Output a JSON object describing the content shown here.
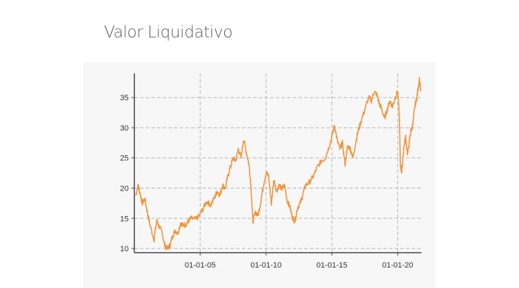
{
  "title": "Valor Liquidativo",
  "colors": {
    "series": "#f0943a",
    "grid": "#b5b5b5",
    "axis": "#444444"
  },
  "chart_data": {
    "type": "line",
    "title": "Valor Liquidativo",
    "xlabel": "",
    "ylabel": "",
    "x_ticks": [
      "01-01-05",
      "01-01-10",
      "01-01-15",
      "01-01-20"
    ],
    "x_tick_years": [
      2005,
      2010,
      2015,
      2020
    ],
    "y_ticks": [
      "10",
      "15",
      "20",
      "25",
      "30",
      "35"
    ],
    "y_tick_values": [
      10,
      15,
      20,
      25,
      30,
      35
    ],
    "xlim": [
      2000.0,
      2021.8
    ],
    "ylim": [
      9.3,
      39.0
    ],
    "grid": true,
    "series": [
      {
        "x": [
          2000.1,
          2000.3,
          2000.45,
          2000.6,
          2000.8,
          2001.0,
          2001.2,
          2001.5,
          2001.7,
          2001.9,
          2002.1,
          2002.3,
          2002.5,
          2002.7,
          2002.9,
          2003.1,
          2003.3,
          2003.5,
          2003.7,
          2003.9,
          2004.1,
          2004.3,
          2004.6,
          2004.9,
          2005.2,
          2005.5,
          2005.8,
          2006.1,
          2006.3,
          2006.5,
          2006.7,
          2006.9,
          2007.1,
          2007.3,
          2007.5,
          2007.7,
          2007.9,
          2008.1,
          2008.3,
          2008.5,
          2008.7,
          2008.85,
          2009.0,
          2009.2,
          2009.4,
          2009.6,
          2009.8,
          2010.0,
          2010.2,
          2010.4,
          2010.6,
          2010.8,
          2011.0,
          2011.2,
          2011.4,
          2011.6,
          2011.8,
          2012.0,
          2012.2,
          2012.4,
          2012.6,
          2012.8,
          2013.0,
          2013.3,
          2013.6,
          2013.9,
          2014.2,
          2014.5,
          2014.8,
          2015.0,
          2015.2,
          2015.4,
          2015.6,
          2015.8,
          2016.0,
          2016.2,
          2016.4,
          2016.6,
          2016.8,
          2017.0,
          2017.2,
          2017.5,
          2017.8,
          2018.0,
          2018.2,
          2018.4,
          2018.6,
          2018.8,
          2019.0,
          2019.2,
          2019.4,
          2019.6,
          2019.8,
          2020.0,
          2020.12,
          2020.2,
          2020.3,
          2020.45,
          2020.6,
          2020.75,
          2020.9,
          2021.0,
          2021.15,
          2021.3,
          2021.45,
          2021.55,
          2021.65,
          2021.75
        ],
        "y": [
          18.8,
          20.5,
          19.0,
          17.5,
          18.2,
          15.8,
          13.8,
          11.5,
          14.7,
          13.5,
          12.8,
          10.5,
          10.0,
          10.5,
          12.0,
          13.0,
          12.5,
          14.2,
          13.8,
          14.0,
          14.5,
          15.0,
          14.8,
          15.3,
          16.5,
          17.8,
          17.2,
          18.5,
          19.5,
          18.8,
          20.5,
          20.0,
          22.0,
          23.5,
          25.0,
          24.5,
          26.5,
          25.0,
          28.2,
          26.0,
          24.0,
          20.5,
          14.5,
          16.0,
          15.5,
          17.8,
          20.5,
          22.5,
          22.0,
          17.5,
          21.5,
          19.5,
          20.5,
          19.8,
          20.5,
          18.0,
          17.0,
          15.2,
          14.5,
          16.8,
          17.5,
          19.0,
          20.5,
          21.0,
          22.0,
          23.5,
          24.5,
          25.0,
          27.0,
          28.5,
          30.5,
          28.0,
          26.5,
          27.5,
          24.0,
          27.0,
          26.5,
          25.0,
          27.5,
          29.5,
          31.0,
          33.0,
          35.0,
          34.5,
          36.0,
          35.5,
          34.0,
          33.0,
          31.5,
          33.0,
          34.5,
          33.5,
          35.0,
          36.0,
          32.0,
          24.0,
          22.5,
          26.5,
          28.5,
          25.5,
          28.0,
          29.5,
          30.5,
          33.5,
          35.0,
          36.5,
          38.0,
          36.0
        ]
      }
    ]
  }
}
